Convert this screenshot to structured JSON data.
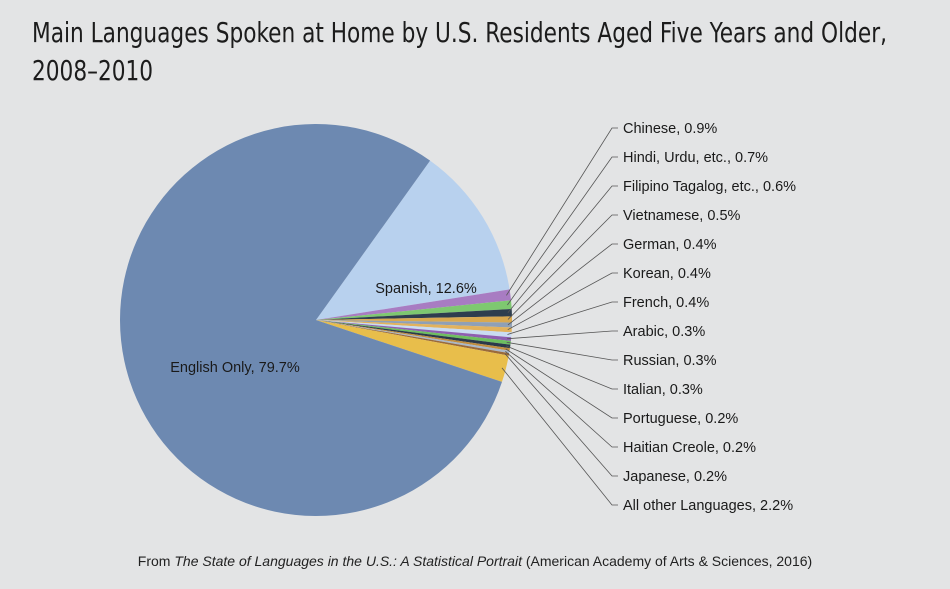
{
  "title": "Main Languages Spoken at Home by U.S. Residents Aged Five Years and Older, 2008–2010",
  "source": {
    "prefix": "From ",
    "title": "The State of Languages in the U.S.: A Statistical Portrait",
    "suffix": " (American Academy of Arts & Sciences, 2016)"
  },
  "chart_data": {
    "type": "pie",
    "unit": "%",
    "slices": [
      {
        "label": "English Only",
        "value": 79.7,
        "color": "#6d89b1"
      },
      {
        "label": "Spanish",
        "value": 12.6,
        "color": "#b8d1ee"
      },
      {
        "label": "Chinese",
        "value": 0.9,
        "color": "#a87cc2"
      },
      {
        "label": "Hindi, Urdu, etc.",
        "value": 0.7,
        "color": "#7ec870"
      },
      {
        "label": "Filipino Tagalog, etc.",
        "value": 0.6,
        "color": "#2e3e4e"
      },
      {
        "label": "Vietnamese",
        "value": 0.5,
        "color": "#d9a94f"
      },
      {
        "label": "German",
        "value": 0.4,
        "color": "#8fa0b6"
      },
      {
        "label": "Korean",
        "value": 0.4,
        "color": "#e2b25c"
      },
      {
        "label": "French",
        "value": 0.4,
        "color": "#c9dcf2"
      },
      {
        "label": "Arabic",
        "value": 0.3,
        "color": "#8e5fb1"
      },
      {
        "label": "Russian",
        "value": 0.3,
        "color": "#6dbf5f"
      },
      {
        "label": "Italian",
        "value": 0.3,
        "color": "#2b3a4a"
      },
      {
        "label": "Portuguese",
        "value": 0.2,
        "color": "#c08d3e"
      },
      {
        "label": "Haitian Creole",
        "value": 0.2,
        "color": "#a9b7c8"
      },
      {
        "label": "Japanese",
        "value": 0.2,
        "color": "#9a6a3a"
      },
      {
        "label": "All other Languages",
        "value": 2.2,
        "color": "#e8be4b"
      }
    ],
    "inside_labels": [
      "English Only, 79.7%",
      "Spanish, 12.6%"
    ],
    "callout_labels": [
      "Chinese, 0.9%",
      "Hindi, Urdu, etc., 0.7%",
      "Filipino Tagalog, etc., 0.6%",
      "Vietnamese, 0.5%",
      "German, 0.4%",
      "Korean, 0.4%",
      "French, 0.4%",
      "Arabic, 0.3%",
      "Russian, 0.3%",
      "Italian, 0.3%",
      "Portuguese, 0.2%",
      "Haitian Creole, 0.2%",
      "Japanese, 0.2%",
      "All other Languages, 2.2%"
    ],
    "callout_color": "#555555"
  }
}
